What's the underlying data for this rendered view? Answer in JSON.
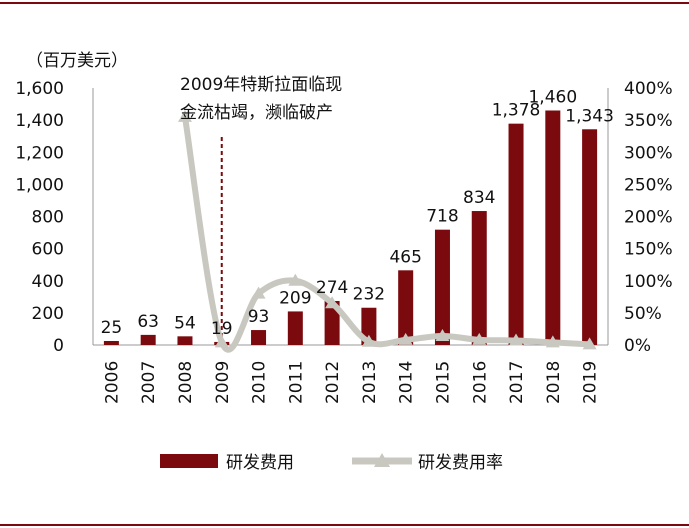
{
  "chart_data": {
    "type": "bar+line",
    "unit_label": "（百万美元）",
    "annotation": [
      "2009年特斯拉面临现",
      "金流枯竭，濒临破产"
    ],
    "categories": [
      "2006",
      "2007",
      "2008",
      "2009",
      "2010",
      "2011",
      "2012",
      "2013",
      "2014",
      "2015",
      "2016",
      "2017",
      "2018",
      "2019"
    ],
    "series": [
      {
        "name": "研发费用",
        "type": "bar",
        "axis": "left",
        "color": "#7a0a0e",
        "values": [
          25,
          63,
          54,
          19,
          93,
          209,
          274,
          232,
          465,
          718,
          834,
          1378,
          1460,
          1343
        ]
      },
      {
        "name": "研发费用率",
        "type": "line",
        "axis": "right",
        "color": "#c8c8c0",
        "values": [
          null,
          null,
          355,
          4,
          80,
          100,
          65,
          5,
          8,
          14,
          8,
          7,
          4,
          1
        ]
      }
    ],
    "y_left": {
      "min": 0,
      "max": 1600,
      "step": 200,
      "ticks": [
        "0",
        "200",
        "400",
        "600",
        "800",
        "1,000",
        "1,200",
        "1,400",
        "1,600"
      ]
    },
    "y_right": {
      "min": 0,
      "max": 400,
      "step": 50,
      "ticks": [
        "0%",
        "50%",
        "100%",
        "150%",
        "200%",
        "250%",
        "300%",
        "350%",
        "400%"
      ]
    },
    "data_labels": [
      "25",
      "63",
      "54",
      "19",
      "93",
      "209",
      "274",
      "232",
      "465",
      "718",
      "834",
      "1,378",
      "1,460",
      "1,343"
    ],
    "marker_category": "2009",
    "grid": false,
    "legend_position": "bottom"
  }
}
